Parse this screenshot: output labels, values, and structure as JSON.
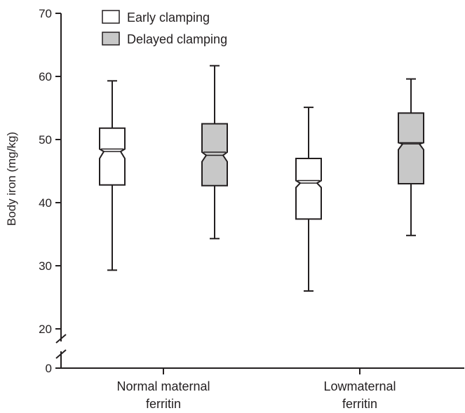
{
  "chart_data": {
    "type": "box",
    "title": "",
    "xlabel": "",
    "ylabel": "Body iron (mg/kg)",
    "ylim": [
      0,
      70
    ],
    "axis_break": [
      0,
      20
    ],
    "yticks": [
      0,
      20,
      30,
      40,
      50,
      60,
      70
    ],
    "grid": false,
    "legend_position": "top-left",
    "categories": [
      [
        "Normal maternal",
        "ferritin"
      ],
      [
        "Lowmaternal",
        "ferritin"
      ]
    ],
    "series": [
      {
        "name": "Early clamping",
        "fill": "#ffffff",
        "boxes": [
          {
            "min": 29.3,
            "q1": 42.8,
            "notch_low": 47.0,
            "median": 48.1,
            "notch_high": 48.5,
            "q3": 51.8,
            "max": 59.3
          },
          {
            "min": 26.0,
            "q1": 37.4,
            "notch_low": 42.4,
            "median": 43.1,
            "notch_high": 43.5,
            "q3": 47.0,
            "max": 55.1
          }
        ]
      },
      {
        "name": "Delayed clamping",
        "fill": "#c8c8c8",
        "boxes": [
          {
            "min": 34.3,
            "q1": 42.7,
            "notch_low": 46.5,
            "median": 47.5,
            "notch_high": 48.0,
            "q3": 52.5,
            "max": 61.7
          },
          {
            "min": 34.8,
            "q1": 43.0,
            "notch_low": 48.4,
            "median": 49.3,
            "notch_high": 49.5,
            "q3": 54.2,
            "max": 59.6
          }
        ]
      }
    ]
  }
}
